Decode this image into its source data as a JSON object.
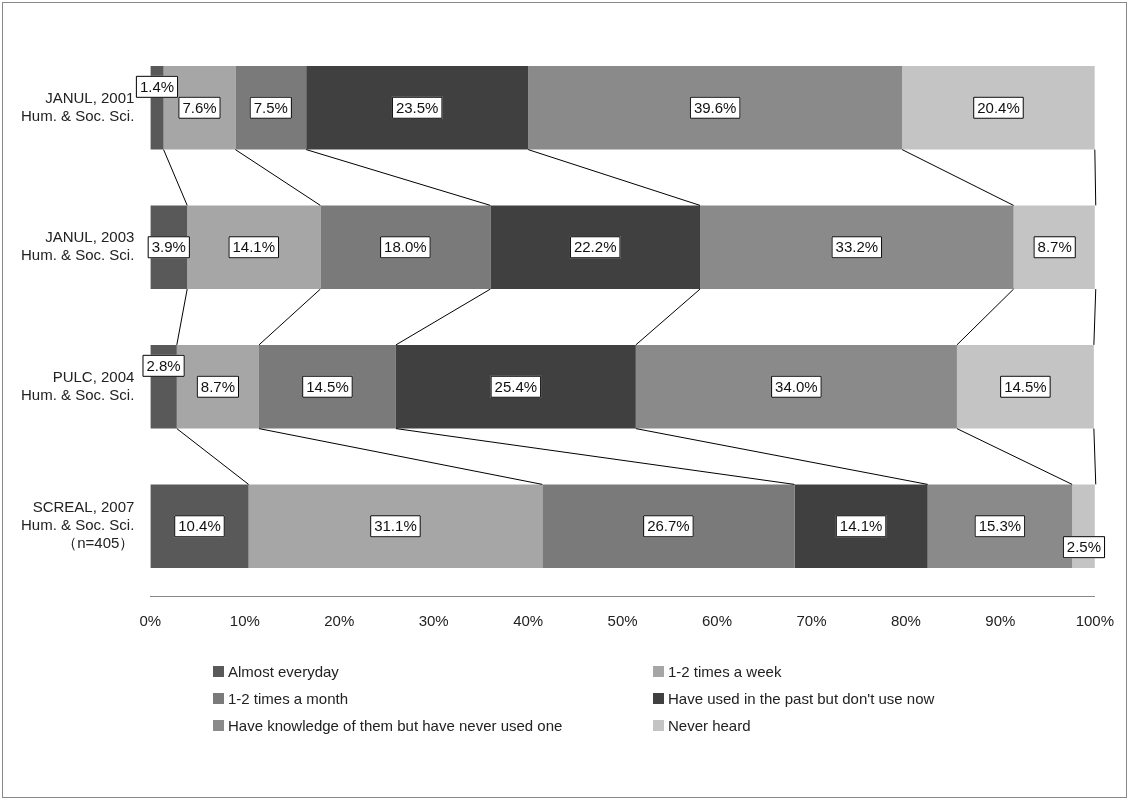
{
  "chart_data": {
    "type": "bar",
    "orientation": "horizontal",
    "stacked": true,
    "legend": "bottom",
    "grid": false,
    "categories": [
      "JANUL, 2001\nHum. & Soc. Sci.",
      "JANUL, 2003\nHum. & Soc. Sci.",
      "PULC, 2004\nHum. & Soc. Sci.",
      "SCREAL, 2007\nHum. & Soc. Sci.\n（n=405）"
    ],
    "xlim": [
      0,
      100
    ],
    "xticks": [
      {
        "value": 0,
        "label": "0%"
      },
      {
        "value": 10,
        "label": "10%"
      },
      {
        "value": 20,
        "label": "20%"
      },
      {
        "value": 30,
        "label": "30%"
      },
      {
        "value": 40,
        "label": "40%"
      },
      {
        "value": 50,
        "label": "50%"
      },
      {
        "value": 60,
        "label": "60%"
      },
      {
        "value": 70,
        "label": "70%"
      },
      {
        "value": 80,
        "label": "80%"
      },
      {
        "value": 90,
        "label": "90%"
      },
      {
        "value": 100,
        "label": "100%"
      }
    ],
    "series": [
      {
        "name": "Almost everyday",
        "color": "#595959",
        "values": [
          1.4,
          3.9,
          2.8,
          10.4
        ],
        "value_labels": [
          "1.4%",
          "3.9%",
          "2.8%",
          "10.4%"
        ]
      },
      {
        "name": "1-2 times a week",
        "color": "#a6a6a6",
        "values": [
          7.6,
          14.1,
          8.7,
          31.1
        ],
        "value_labels": [
          "7.6%",
          "14.1%",
          "8.7%",
          "31.1%"
        ]
      },
      {
        "name": "1-2 times a month",
        "color": "#7a7a7a",
        "values": [
          7.5,
          18.0,
          14.5,
          26.7
        ],
        "value_labels": [
          "7.5%",
          "18.0%",
          "14.5%",
          "26.7%"
        ]
      },
      {
        "name": "Have used in the past but don't use now",
        "color": "#404040",
        "values": [
          23.5,
          22.2,
          25.4,
          14.1
        ],
        "value_labels": [
          "23.5%",
          "22.2%",
          "25.4%",
          "14.1%"
        ]
      },
      {
        "name": "Have knowledge of them but have never used one",
        "color": "#8a8a8a",
        "values": [
          39.6,
          33.2,
          34.0,
          15.3
        ],
        "value_labels": [
          "39.6%",
          "33.2%",
          "34.0%",
          "15.3%"
        ]
      },
      {
        "name": "Never heard",
        "color": "#c4c4c4",
        "values": [
          20.4,
          8.7,
          14.5,
          2.5
        ],
        "value_labels": [
          "20.4%",
          "8.7%",
          "14.5%",
          "2.5%"
        ]
      }
    ]
  }
}
